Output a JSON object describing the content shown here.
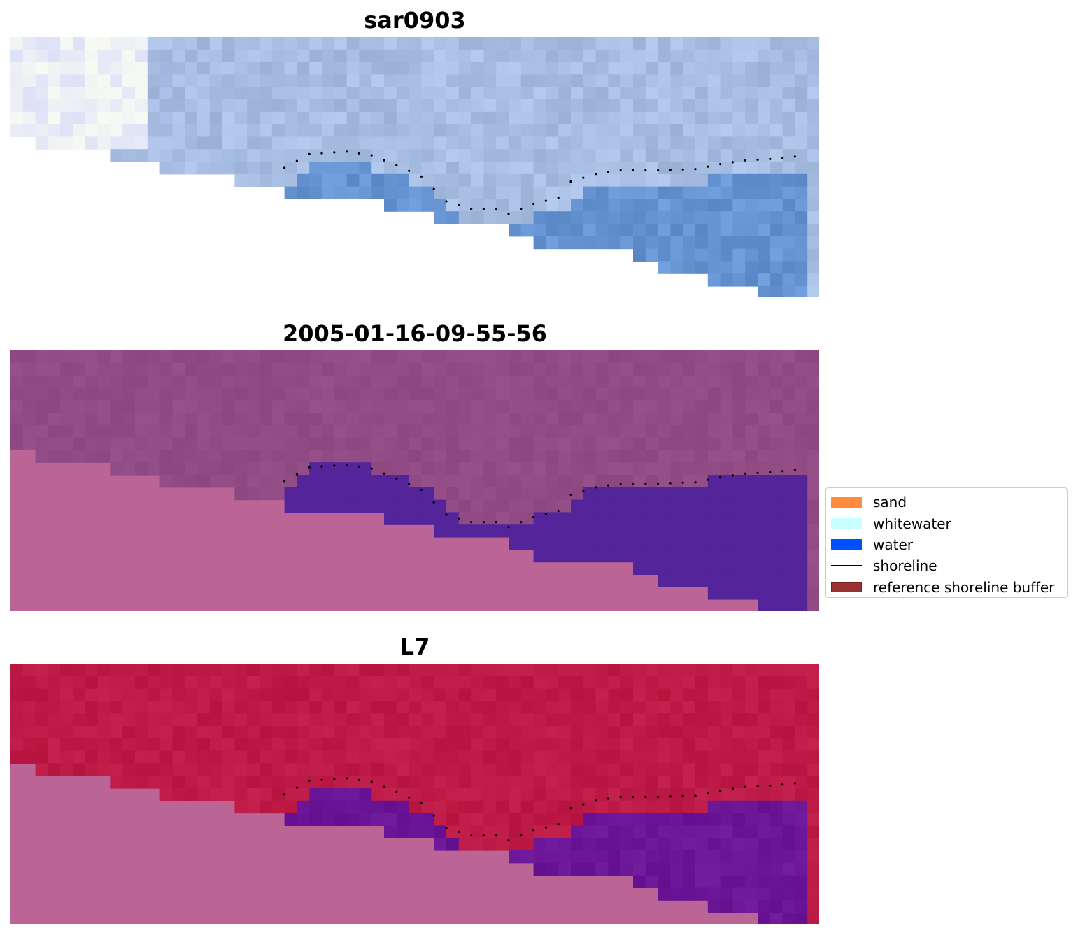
{
  "panels": [
    {
      "title": "sar0903",
      "type": "rgb"
    },
    {
      "title": "2005-01-16-09-55-56",
      "type": "classified"
    },
    {
      "title": "L7",
      "type": "index"
    }
  ],
  "legend": {
    "items": [
      {
        "label": "sand",
        "kind": "patch",
        "color": "#ff8c3c",
        "edge": "#ff8c3c"
      },
      {
        "label": "whitewater",
        "kind": "patch",
        "color": "#c8ffff",
        "edge": "#c8ffff"
      },
      {
        "label": "water",
        "kind": "patch",
        "color": "#0050ff",
        "edge": "#0050ff"
      },
      {
        "label": "shoreline",
        "kind": "line",
        "color": "#000000"
      },
      {
        "label": "reference shoreline buffer",
        "kind": "patch",
        "color": "#993333",
        "edge": "#7a1f1f"
      }
    ]
  },
  "colors": {
    "nodata": "#ba6595",
    "rgb_land": "#a7bde2",
    "rgb_water": "#6694d3",
    "class_land": "#914b85",
    "class_water": "#53249a",
    "index_land": "#bd1a45",
    "index_water": "#6b1696",
    "shoreline": "#000000"
  }
}
